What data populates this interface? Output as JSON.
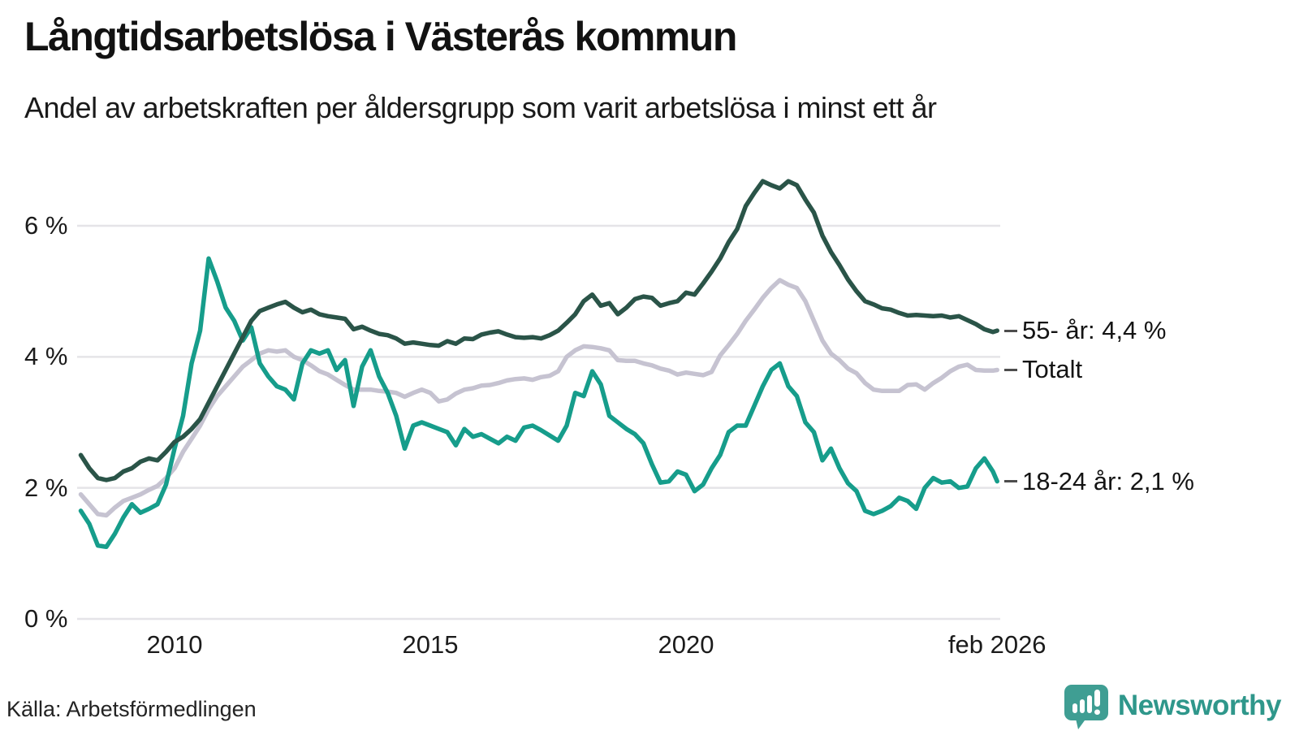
{
  "header": {
    "title": "Långtidsarbetslösa i Västerås kommun",
    "subtitle": "Andel av arbetskraften per åldersgrupp som varit arbetslösa i minst ett år"
  },
  "footer": {
    "source": "Källa: Arbetsförmedlingen",
    "brand": "Newsworthy",
    "brand_color": "#2f978b",
    "brand_icon_color": "#3f9e93"
  },
  "chart_data": {
    "type": "line",
    "title": "Långtidsarbetslösa i Västerås kommun",
    "subtitle": "Andel av arbetskraften per åldersgrupp som varit arbetslösa i minst ett år",
    "unit": "%",
    "grid": "horizontal-only",
    "legend_position": "right-edge-labels",
    "x_axis": {
      "t_start": 2008.167,
      "t_end": 2026.083,
      "t_step": 0.16667,
      "ticks": [
        {
          "label": "2010",
          "value": 2010
        },
        {
          "label": "2015",
          "value": 2015
        },
        {
          "label": "2020",
          "value": 2020
        },
        {
          "label": "feb 2026",
          "value": 2026.083
        }
      ]
    },
    "y_axis": {
      "ylim": [
        0,
        7
      ],
      "gridline_color": "#e5e4e8",
      "ticks": [
        {
          "label": "0 %",
          "value": 0
        },
        {
          "label": "2 %",
          "value": 2
        },
        {
          "label": "4 %",
          "value": 4
        },
        {
          "label": "6 %",
          "value": 6
        }
      ]
    },
    "series": [
      {
        "id": "totalt",
        "name": "Totalt",
        "label": "Totalt",
        "last_value": 3.8,
        "color": "#c6c3d1",
        "values": [
          1.9,
          1.75,
          1.6,
          1.58,
          1.7,
          1.8,
          1.85,
          1.9,
          1.97,
          2.03,
          2.15,
          2.3,
          2.55,
          2.75,
          2.95,
          3.2,
          3.4,
          3.55,
          3.7,
          3.85,
          3.95,
          4.05,
          4.1,
          4.08,
          4.1,
          4.0,
          3.95,
          3.87,
          3.78,
          3.73,
          3.65,
          3.57,
          3.5,
          3.5,
          3.5,
          3.48,
          3.47,
          3.45,
          3.39,
          3.45,
          3.5,
          3.45,
          3.32,
          3.35,
          3.44,
          3.5,
          3.52,
          3.56,
          3.57,
          3.6,
          3.64,
          3.66,
          3.67,
          3.65,
          3.69,
          3.71,
          3.78,
          4.0,
          4.1,
          4.16,
          4.15,
          4.13,
          4.1,
          3.95,
          3.94,
          3.94,
          3.9,
          3.87,
          3.82,
          3.79,
          3.73,
          3.76,
          3.74,
          3.72,
          3.77,
          4.02,
          4.18,
          4.35,
          4.55,
          4.72,
          4.9,
          5.05,
          5.17,
          5.1,
          5.05,
          4.85,
          4.55,
          4.25,
          4.05,
          3.95,
          3.82,
          3.75,
          3.6,
          3.5,
          3.48,
          3.48,
          3.48,
          3.57,
          3.58,
          3.5,
          3.6,
          3.68,
          3.78,
          3.85,
          3.88,
          3.8,
          3.79,
          3.79,
          3.8
        ]
      },
      {
        "id": "18-24",
        "name": "18-24 år",
        "label": "18-24 år: 2,1 %",
        "last_value": 2.1,
        "color": "#169d8b",
        "values": [
          1.65,
          1.45,
          1.12,
          1.1,
          1.3,
          1.55,
          1.75,
          1.62,
          1.68,
          1.75,
          2.05,
          2.6,
          3.1,
          3.9,
          4.4,
          5.5,
          5.15,
          4.75,
          4.55,
          4.25,
          4.45,
          3.9,
          3.7,
          3.55,
          3.5,
          3.35,
          3.9,
          4.1,
          4.05,
          4.1,
          3.8,
          3.95,
          3.25,
          3.85,
          4.1,
          3.7,
          3.45,
          3.1,
          2.6,
          2.95,
          3.0,
          2.95,
          2.9,
          2.85,
          2.65,
          2.9,
          2.78,
          2.82,
          2.75,
          2.68,
          2.78,
          2.72,
          2.92,
          2.95,
          2.88,
          2.8,
          2.72,
          2.95,
          3.45,
          3.4,
          3.78,
          3.58,
          3.1,
          3.0,
          2.9,
          2.82,
          2.68,
          2.36,
          2.08,
          2.1,
          2.25,
          2.2,
          1.95,
          2.05,
          2.3,
          2.5,
          2.85,
          2.95,
          2.95,
          3.25,
          3.55,
          3.8,
          3.9,
          3.55,
          3.4,
          3.0,
          2.85,
          2.42,
          2.6,
          2.3,
          2.07,
          1.95,
          1.65,
          1.6,
          1.65,
          1.72,
          1.85,
          1.8,
          1.68,
          2.0,
          2.15,
          2.08,
          2.1,
          2.0,
          2.02,
          2.3,
          2.45,
          2.25,
          2.1
        ]
      },
      {
        "id": "55-plus",
        "name": "55- år",
        "label": "55- år: 4,4 %",
        "last_value": 4.4,
        "color": "#2a5448",
        "values": [
          2.5,
          2.3,
          2.15,
          2.12,
          2.15,
          2.25,
          2.3,
          2.4,
          2.45,
          2.42,
          2.55,
          2.7,
          2.78,
          2.9,
          3.05,
          3.3,
          3.55,
          3.8,
          4.05,
          4.3,
          4.55,
          4.7,
          4.75,
          4.8,
          4.84,
          4.75,
          4.68,
          4.72,
          4.65,
          4.62,
          4.6,
          4.58,
          4.42,
          4.46,
          4.4,
          4.35,
          4.33,
          4.28,
          4.2,
          4.22,
          4.2,
          4.18,
          4.17,
          4.24,
          4.2,
          4.28,
          4.27,
          4.34,
          4.37,
          4.39,
          4.34,
          4.3,
          4.29,
          4.3,
          4.28,
          4.33,
          4.4,
          4.52,
          4.65,
          4.85,
          4.95,
          4.78,
          4.82,
          4.65,
          4.75,
          4.88,
          4.92,
          4.9,
          4.78,
          4.82,
          4.85,
          4.98,
          4.95,
          5.12,
          5.3,
          5.5,
          5.75,
          5.95,
          6.3,
          6.5,
          6.68,
          6.62,
          6.57,
          6.68,
          6.62,
          6.4,
          6.2,
          5.85,
          5.6,
          5.4,
          5.18,
          5.0,
          4.85,
          4.8,
          4.74,
          4.72,
          4.67,
          4.63,
          4.64,
          4.63,
          4.62,
          4.63,
          4.6,
          4.62,
          4.56,
          4.5,
          4.42,
          4.38,
          4.4
        ]
      }
    ]
  }
}
